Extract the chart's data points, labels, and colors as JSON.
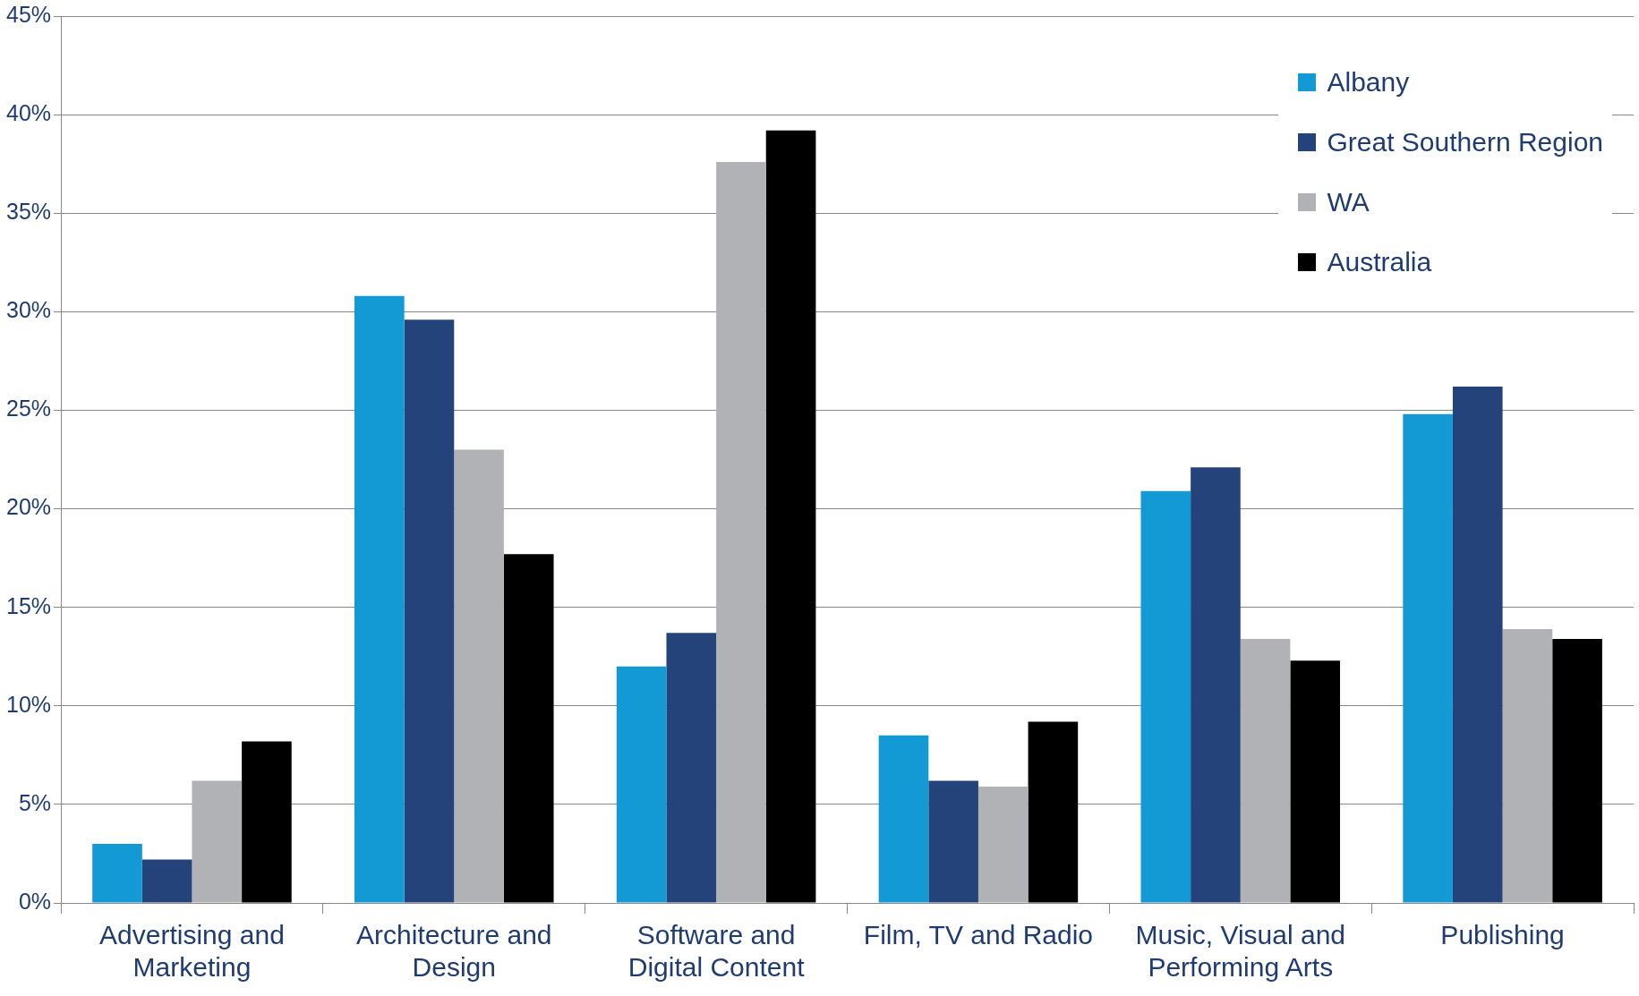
{
  "chart_data": {
    "type": "bar",
    "categories": [
      "Advertising and Marketing",
      "Architecture and Design",
      "Software and Digital Content",
      "Film, TV and Radio",
      "Music, Visual and Performing Arts",
      "Publishing"
    ],
    "series": [
      {
        "name": "Albany",
        "color": "#1399d3",
        "values": [
          3.0,
          30.8,
          12.0,
          8.5,
          20.9,
          24.8
        ]
      },
      {
        "name": "Great Southern Region",
        "color": "#24437a",
        "values": [
          2.2,
          29.6,
          13.7,
          6.2,
          22.1,
          26.2
        ]
      },
      {
        "name": "WA",
        "color": "#b1b2b6",
        "values": [
          6.2,
          23.0,
          37.6,
          5.9,
          13.4,
          13.9
        ]
      },
      {
        "name": "Australia",
        "color": "#000000",
        "values": [
          8.2,
          17.7,
          39.2,
          9.2,
          12.3,
          13.4
        ]
      }
    ],
    "ylim": [
      0,
      45
    ],
    "yticks": [
      {
        "value": 0,
        "label": "0%"
      },
      {
        "value": 5,
        "label": "5%"
      },
      {
        "value": 10,
        "label": "10%"
      },
      {
        "value": 15,
        "label": "15%"
      },
      {
        "value": 20,
        "label": "20%"
      },
      {
        "value": 25,
        "label": "25%"
      },
      {
        "value": 30,
        "label": "30%"
      },
      {
        "value": 35,
        "label": "35%"
      },
      {
        "value": 40,
        "label": "40%"
      },
      {
        "value": 45,
        "label": "45%"
      }
    ],
    "grid": "y",
    "legend": "top right"
  }
}
